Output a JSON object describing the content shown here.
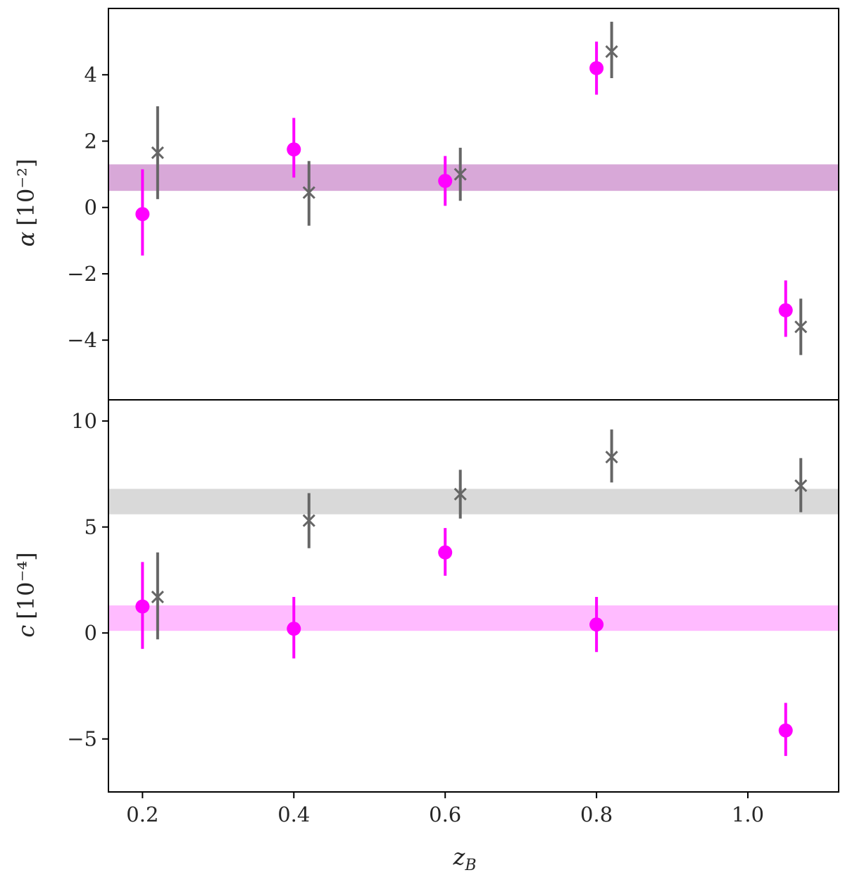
{
  "chart_data": [
    {
      "type": "scatter",
      "panel": "top",
      "ylabel_symbol": "α",
      "ylabel_unit": "[10⁻²]",
      "ylim": [
        -5.8,
        6.0
      ],
      "xlim": [
        0.155,
        1.12
      ],
      "yticks": [
        4,
        2,
        0,
        -2,
        -4
      ],
      "ytick_labels": [
        "4",
        "2",
        "0",
        "−2",
        "−4"
      ],
      "grid": false,
      "bands": [
        {
          "y_low": 0.5,
          "y_high": 1.3,
          "color": "#d8a8d8"
        }
      ],
      "series": [
        {
          "marker": "circle",
          "color": "#ff00ff",
          "x": [
            0.2,
            0.4,
            0.6,
            0.8,
            1.05
          ],
          "y": [
            -0.2,
            1.75,
            0.8,
            4.2,
            -3.1
          ],
          "err_low": [
            1.25,
            0.85,
            0.75,
            0.8,
            0.8
          ],
          "err_high": [
            1.35,
            0.95,
            0.75,
            0.8,
            0.9
          ]
        },
        {
          "marker": "x",
          "color": "#666666",
          "x": [
            0.22,
            0.42,
            0.62,
            0.82,
            1.07
          ],
          "y": [
            1.65,
            0.45,
            1.0,
            4.7,
            -3.6
          ],
          "err_low": [
            1.4,
            1.0,
            0.8,
            0.8,
            0.85
          ],
          "err_high": [
            1.4,
            0.95,
            0.8,
            0.9,
            0.85
          ]
        }
      ]
    },
    {
      "type": "scatter",
      "panel": "bottom",
      "ylabel_symbol": "c",
      "ylabel_unit": "[10⁻⁴]",
      "xlabel_main": "z",
      "xlabel_sub": "B",
      "ylim": [
        -7.5,
        11.0
      ],
      "xlim": [
        0.155,
        1.12
      ],
      "yticks": [
        10,
        5,
        0,
        -5
      ],
      "ytick_labels": [
        "10",
        "5",
        "0",
        "−5"
      ],
      "xticks": [
        0.2,
        0.4,
        0.6,
        0.8,
        1.0
      ],
      "xtick_labels": [
        "0.2",
        "0.4",
        "0.6",
        "0.8",
        "1.0"
      ],
      "grid": false,
      "bands": [
        {
          "y_low": 5.6,
          "y_high": 6.8,
          "color": "#d9d9d9"
        },
        {
          "y_low": 0.1,
          "y_high": 1.3,
          "color": "#ffbbff"
        }
      ],
      "series": [
        {
          "marker": "circle",
          "color": "#ff00ff",
          "x": [
            0.2,
            0.4,
            0.6,
            0.8,
            1.05
          ],
          "y": [
            1.25,
            0.2,
            3.8,
            0.4,
            -4.6
          ],
          "err_low": [
            2.0,
            1.4,
            1.1,
            1.3,
            1.2
          ],
          "err_high": [
            2.1,
            1.5,
            1.15,
            1.3,
            1.3
          ]
        },
        {
          "marker": "x",
          "color": "#666666",
          "x": [
            0.22,
            0.42,
            0.62,
            0.82,
            1.07
          ],
          "y": [
            1.7,
            5.3,
            6.55,
            8.3,
            6.95
          ],
          "err_low": [
            2.0,
            1.3,
            1.15,
            1.2,
            1.25
          ],
          "err_high": [
            2.1,
            1.3,
            1.15,
            1.3,
            1.3
          ]
        }
      ]
    }
  ]
}
